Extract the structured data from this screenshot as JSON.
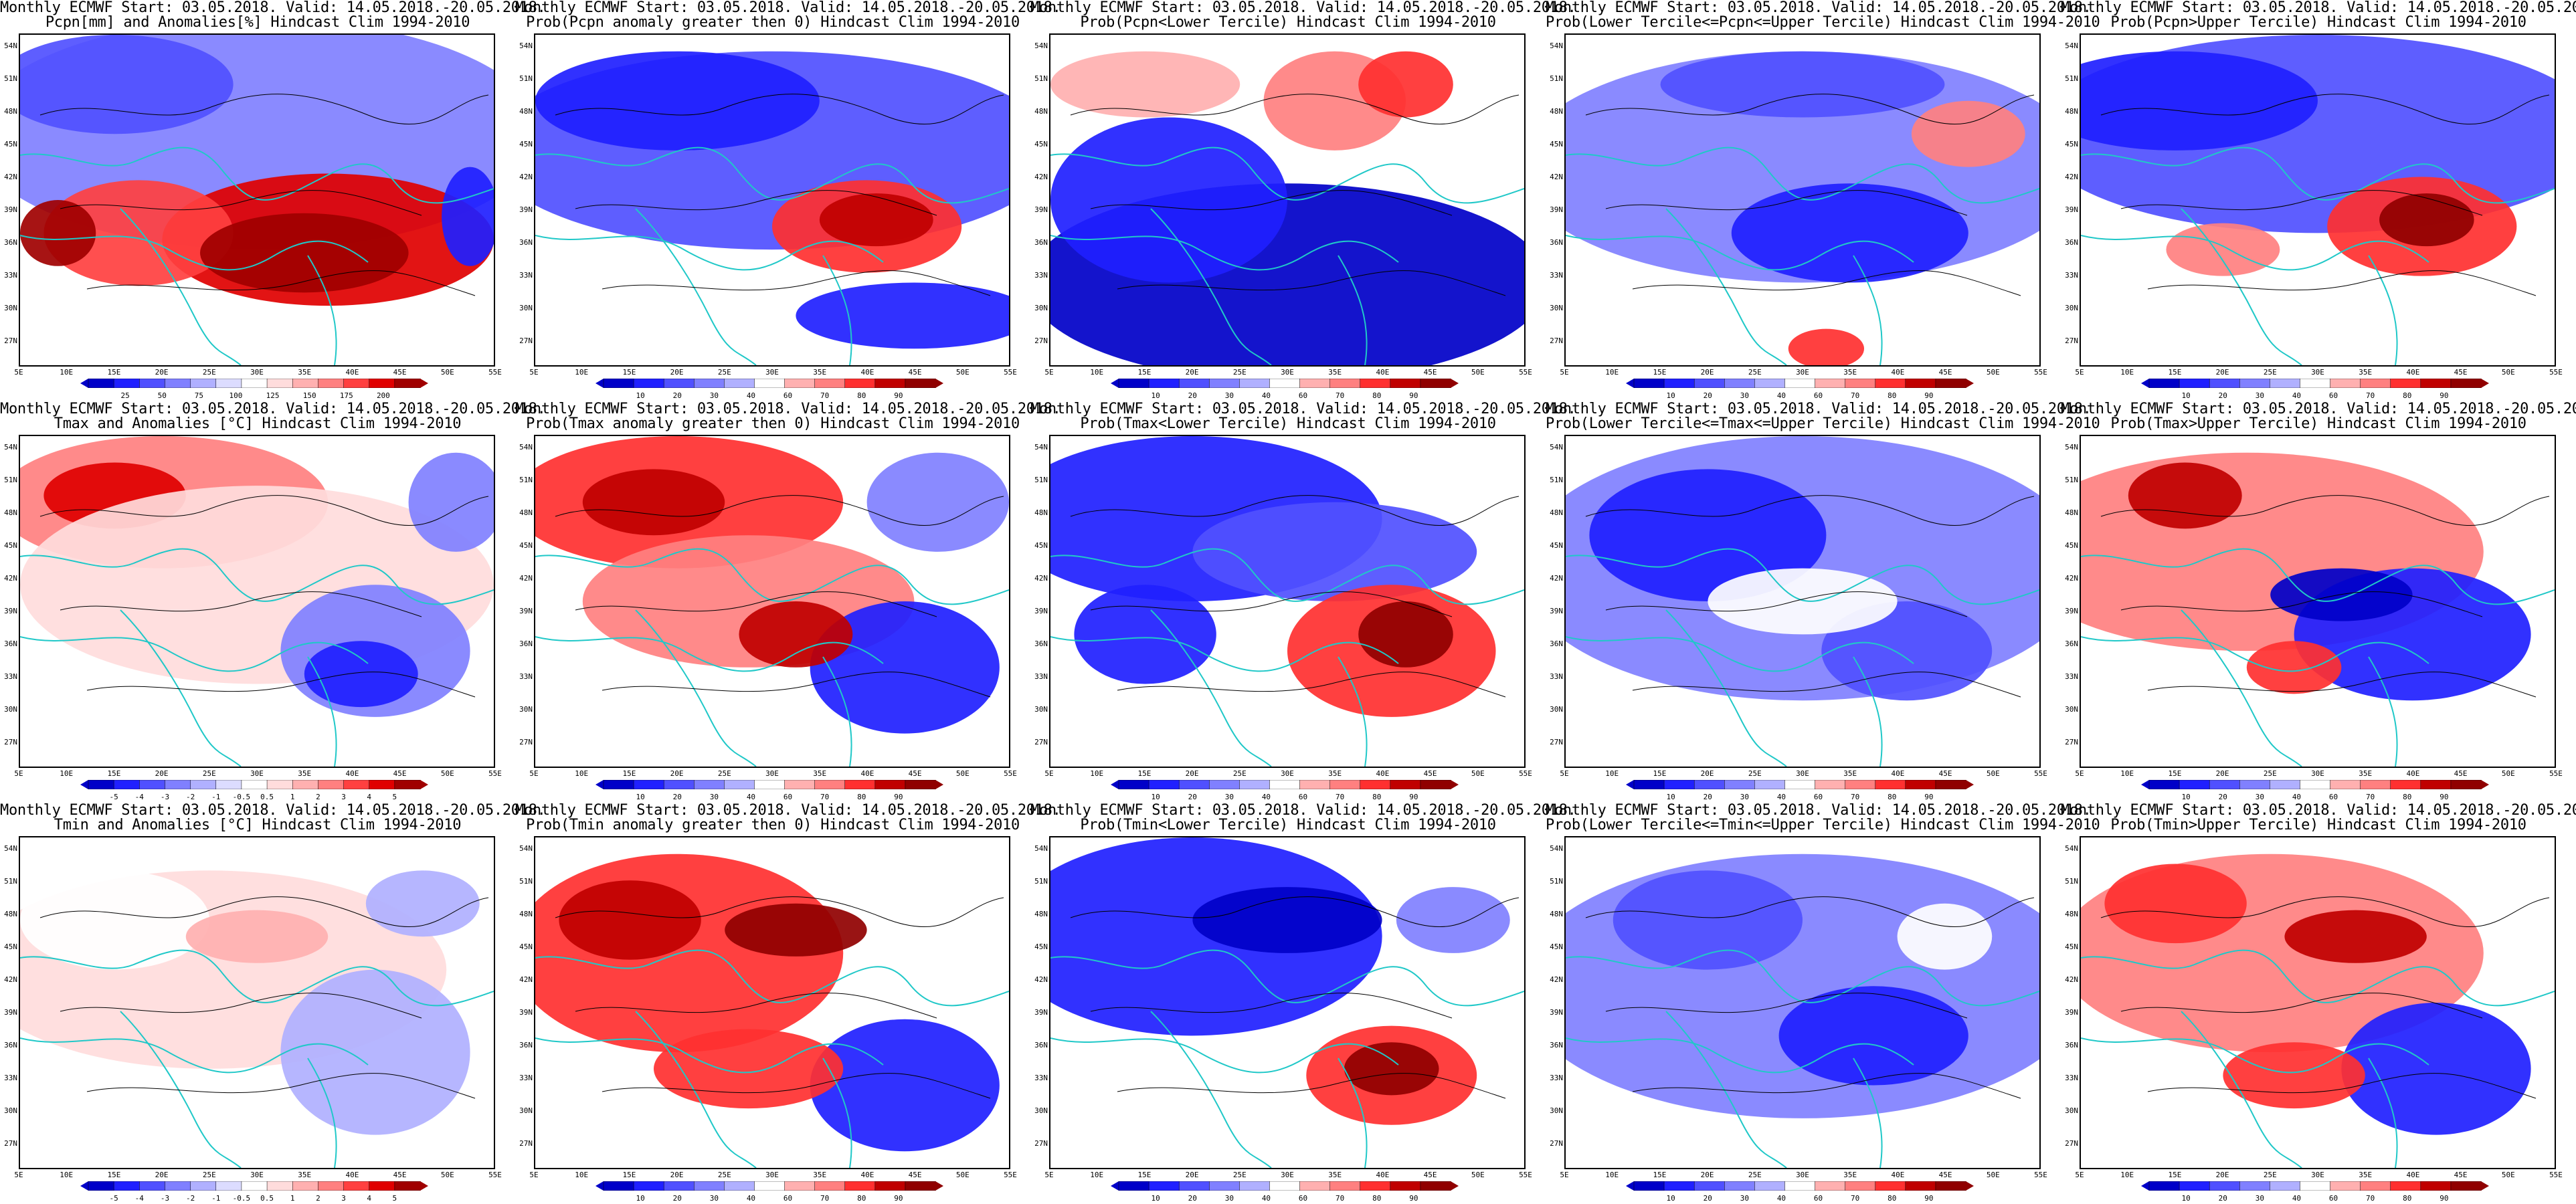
{
  "header": "Monthly ECMWF Start: 03.05.2018. Valid: 14.05.2018.-20.05.2018.",
  "lat_labels": [
    "54N",
    "51N",
    "48N",
    "45N",
    "42N",
    "39N",
    "36N",
    "33N",
    "30N",
    "27N"
  ],
  "lon_labels": [
    "5E",
    "10E",
    "15E",
    "20E",
    "25E",
    "30E",
    "35E",
    "40E",
    "45E",
    "50E",
    "55E"
  ],
  "anomaly_colors": [
    "#0000c8",
    "#2020ff",
    "#5050ff",
    "#8080ff",
    "#b0b0ff",
    "#dcdcff",
    "#ffffff",
    "#ffdcdc",
    "#ffb0b0",
    "#ff8080",
    "#ff4040",
    "#e00000",
    "#a00000"
  ],
  "prob_colors": [
    "#0000c8",
    "#2020ff",
    "#5050ff",
    "#8080ff",
    "#b0b0ff",
    "#ffffff",
    "#ffb0b0",
    "#ff8080",
    "#ff3030",
    "#c00000",
    "#900000"
  ],
  "panels": [
    {
      "subtitle": "Pcpn[mm] and Anomalies[%] Hindcast Clim 1994-2010",
      "scale": "anomaly",
      "ticks": [
        "25",
        "50",
        "75",
        "100",
        "125",
        "150",
        "175",
        "200"
      ],
      "pattern": "pcpn_anom"
    },
    {
      "subtitle": "Prob(Pcpn anomaly greater then 0) Hindcast Clim 1994-2010",
      "scale": "prob",
      "ticks": [
        "10",
        "20",
        "30",
        "40",
        "60",
        "70",
        "80",
        "90"
      ],
      "pattern": "pcpn_pos"
    },
    {
      "subtitle": "Prob(Pcpn<Lower Tercile) Hindcast Clim 1994-2010",
      "scale": "prob",
      "ticks": [
        "10",
        "20",
        "30",
        "40",
        "60",
        "70",
        "80",
        "90"
      ],
      "pattern": "pcpn_low"
    },
    {
      "subtitle": "Prob(Lower Tercile<=Pcpn<=Upper Tercile) Hindcast Clim 1994-2010",
      "scale": "prob",
      "ticks": [
        "10",
        "20",
        "30",
        "40",
        "60",
        "70",
        "80",
        "90"
      ],
      "pattern": "pcpn_mid"
    },
    {
      "subtitle": "Prob(Pcpn>Upper Tercile) Hindcast Clim 1994-2010",
      "scale": "prob",
      "ticks": [
        "10",
        "20",
        "30",
        "40",
        "60",
        "70",
        "80",
        "90"
      ],
      "pattern": "pcpn_up"
    },
    {
      "subtitle": "Tmax and Anomalies [°C] Hindcast Clim 1994-2010",
      "scale": "anomaly",
      "ticks": [
        "-5",
        "-4",
        "-3",
        "-2",
        "-1",
        "-0.5",
        "0.5",
        "1",
        "2",
        "3",
        "4",
        "5"
      ],
      "pattern": "tmax_anom"
    },
    {
      "subtitle": "Prob(Tmax anomaly greater then 0) Hindcast Clim 1994-2010",
      "scale": "prob",
      "ticks": [
        "10",
        "20",
        "30",
        "40",
        "60",
        "70",
        "80",
        "90"
      ],
      "pattern": "tmax_pos"
    },
    {
      "subtitle": "Prob(Tmax<Lower Tercile) Hindcast Clim 1994-2010",
      "scale": "prob",
      "ticks": [
        "10",
        "20",
        "30",
        "40",
        "60",
        "70",
        "80",
        "90"
      ],
      "pattern": "tmax_low"
    },
    {
      "subtitle": "Prob(Lower Tercile<=Tmax<=Upper Tercile) Hindcast Clim 1994-2010",
      "scale": "prob",
      "ticks": [
        "10",
        "20",
        "30",
        "40",
        "60",
        "70",
        "80",
        "90"
      ],
      "pattern": "tmax_mid"
    },
    {
      "subtitle": "Prob(Tmax>Upper Tercile) Hindcast Clim 1994-2010",
      "scale": "prob",
      "ticks": [
        "10",
        "20",
        "30",
        "40",
        "60",
        "70",
        "80",
        "90"
      ],
      "pattern": "tmax_up"
    },
    {
      "subtitle": "Tmin and Anomalies [°C] Hindcast Clim 1994-2010",
      "scale": "anomaly",
      "ticks": [
        "-5",
        "-4",
        "-3",
        "-2",
        "-1",
        "-0.5",
        "0.5",
        "1",
        "2",
        "3",
        "4",
        "5"
      ],
      "pattern": "tmin_anom"
    },
    {
      "subtitle": "Prob(Tmin anomaly greater then 0) Hindcast Clim 1994-2010",
      "scale": "prob",
      "ticks": [
        "10",
        "20",
        "30",
        "40",
        "60",
        "70",
        "80",
        "90"
      ],
      "pattern": "tmin_pos"
    },
    {
      "subtitle": "Prob(Tmin<Lower Tercile) Hindcast Clim 1994-2010",
      "scale": "prob",
      "ticks": [
        "10",
        "20",
        "30",
        "40",
        "60",
        "70",
        "80",
        "90"
      ],
      "pattern": "tmin_low"
    },
    {
      "subtitle": "Prob(Lower Tercile<=Tmin<=Upper Tercile) Hindcast Clim 1994-2010",
      "scale": "prob",
      "ticks": [
        "10",
        "20",
        "30",
        "40",
        "60",
        "70",
        "80",
        "90"
      ],
      "pattern": "tmin_mid"
    },
    {
      "subtitle": "Prob(Tmin>Upper Tercile) Hindcast Clim 1994-2010",
      "scale": "prob",
      "ticks": [
        "10",
        "20",
        "30",
        "40",
        "60",
        "70",
        "80",
        "90"
      ],
      "pattern": "tmin_up"
    }
  ]
}
